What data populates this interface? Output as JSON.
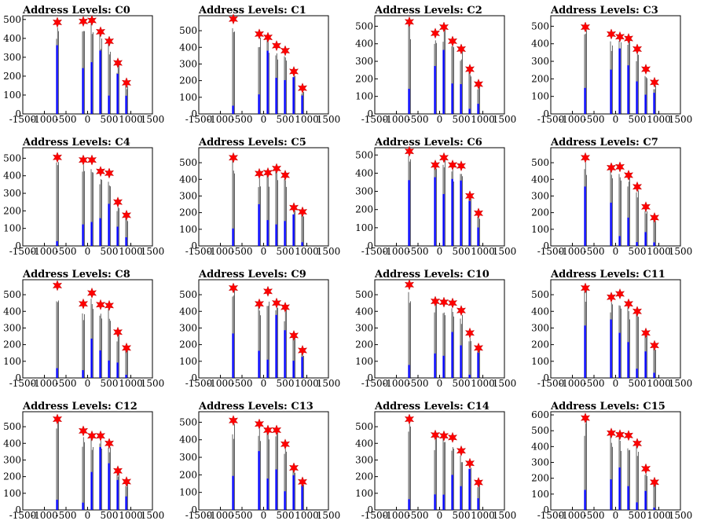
{
  "chart_data": {
    "type": "bar",
    "title_prefix": "Address Levels: ",
    "xlim": [
      -1500,
      1500
    ],
    "x_ticks": [
      "-1500",
      "-1000",
      "-500",
      "0",
      "500",
      "1000",
      "1500"
    ],
    "marker_x": [
      -700,
      -100,
      100,
      300,
      500,
      700,
      900
    ],
    "bar_color": "#0000ff",
    "marker_color": "#ff0000",
    "panels": [
      {
        "label": "C0",
        "ylim": [
          0,
          520
        ],
        "y_ticks": [
          0,
          100,
          200,
          300,
          400,
          500
        ],
        "markers": [
          485,
          490,
          495,
          435,
          385,
          270,
          165
        ]
      },
      {
        "label": "C1",
        "ylim": [
          0,
          590
        ],
        "y_ticks": [
          0,
          100,
          200,
          300,
          400,
          500
        ],
        "markers": [
          570,
          480,
          460,
          410,
          380,
          255,
          155
        ]
      },
      {
        "label": "C2",
        "ylim": [
          0,
          560
        ],
        "y_ticks": [
          0,
          100,
          200,
          300,
          400,
          500
        ],
        "markers": [
          525,
          460,
          495,
          415,
          370,
          255,
          170
        ]
      },
      {
        "label": "C3",
        "ylim": [
          0,
          560
        ],
        "y_ticks": [
          0,
          100,
          200,
          300,
          400,
          500
        ],
        "markers": [
          495,
          455,
          440,
          430,
          370,
          255,
          180
        ]
      },
      {
        "label": "C4",
        "ylim": [
          0,
          560
        ],
        "y_ticks": [
          0,
          100,
          200,
          300,
          400,
          500
        ],
        "markers": [
          505,
          490,
          490,
          425,
          415,
          250,
          175
        ]
      },
      {
        "label": "C5",
        "ylim": [
          0,
          590
        ],
        "y_ticks": [
          0,
          100,
          200,
          300,
          400,
          500
        ],
        "markers": [
          530,
          435,
          440,
          465,
          425,
          230,
          205
        ]
      },
      {
        "label": "C6",
        "ylim": [
          0,
          540
        ],
        "y_ticks": [
          0,
          100,
          200,
          300,
          400,
          500
        ],
        "markers": [
          520,
          445,
          485,
          445,
          440,
          275,
          180
        ]
      },
      {
        "label": "C7",
        "ylim": [
          0,
          590
        ],
        "y_ticks": [
          0,
          100,
          200,
          300,
          400,
          500
        ],
        "markers": [
          530,
          470,
          475,
          425,
          355,
          235,
          170
        ]
      },
      {
        "label": "C8",
        "ylim": [
          0,
          590
        ],
        "y_ticks": [
          0,
          100,
          200,
          300,
          400,
          500
        ],
        "markers": [
          555,
          445,
          510,
          440,
          435,
          275,
          180
        ]
      },
      {
        "label": "C9",
        "ylim": [
          0,
          590
        ],
        "y_ticks": [
          0,
          100,
          200,
          300,
          400,
          500
        ],
        "markers": [
          540,
          445,
          520,
          450,
          425,
          255,
          165
        ]
      },
      {
        "label": "C10",
        "ylim": [
          0,
          590
        ],
        "y_ticks": [
          0,
          100,
          200,
          300,
          400,
          500
        ],
        "markers": [
          560,
          460,
          455,
          450,
          405,
          270,
          180
        ]
      },
      {
        "label": "C11",
        "ylim": [
          0,
          590
        ],
        "y_ticks": [
          0,
          100,
          200,
          300,
          400,
          500
        ],
        "markers": [
          540,
          485,
          505,
          445,
          400,
          270,
          195
        ]
      },
      {
        "label": "C12",
        "ylim": [
          0,
          590
        ],
        "y_ticks": [
          0,
          100,
          200,
          300,
          400,
          500
        ],
        "markers": [
          545,
          475,
          445,
          445,
          400,
          235,
          170
        ]
      },
      {
        "label": "C13",
        "ylim": [
          0,
          560
        ],
        "y_ticks": [
          0,
          100,
          200,
          300,
          400,
          500
        ],
        "markers": [
          510,
          490,
          455,
          455,
          375,
          240,
          160
        ]
      },
      {
        "label": "C14",
        "ylim": [
          0,
          590
        ],
        "y_ticks": [
          0,
          100,
          200,
          300,
          400,
          500
        ],
        "markers": [
          545,
          450,
          445,
          435,
          355,
          280,
          165
        ]
      },
      {
        "label": "C15",
        "ylim": [
          0,
          620
        ],
        "y_ticks": [
          0,
          100,
          200,
          300,
          400,
          500,
          600
        ],
        "markers": [
          580,
          485,
          475,
          470,
          420,
          260,
          175
        ]
      }
    ]
  }
}
